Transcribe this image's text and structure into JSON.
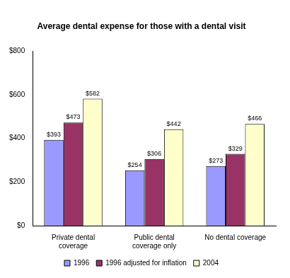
{
  "chart_data": {
    "type": "bar",
    "title": "Average dental expense for those with a dental visit",
    "categories": [
      "Private dental coverage",
      "Public dental coverage only",
      "No dental coverage"
    ],
    "series": [
      {
        "name": "1996",
        "color": "#9999ff",
        "values": [
          393,
          254,
          273
        ],
        "value_labels": [
          "$393",
          "$254",
          "$273"
        ]
      },
      {
        "name": "1996 adjusted for inflation",
        "color": "#993366",
        "values": [
          473,
          306,
          329
        ],
        "value_labels": [
          "$473",
          "$306",
          "$329"
        ]
      },
      {
        "name": "2004",
        "color": "#ffffcc",
        "values": [
          582,
          442,
          466
        ],
        "value_labels": [
          "$582",
          "$442",
          "$466"
        ]
      }
    ],
    "ylim": [
      0,
      800
    ],
    "yticks": [
      {
        "value": 0,
        "label": "$0"
      },
      {
        "value": 200,
        "label": "$200"
      },
      {
        "value": 400,
        "label": "$400"
      },
      {
        "value": 600,
        "label": "$600"
      },
      {
        "value": 800,
        "label": "$800"
      }
    ],
    "grid": false,
    "legend": "bottom",
    "data_labels": true
  }
}
